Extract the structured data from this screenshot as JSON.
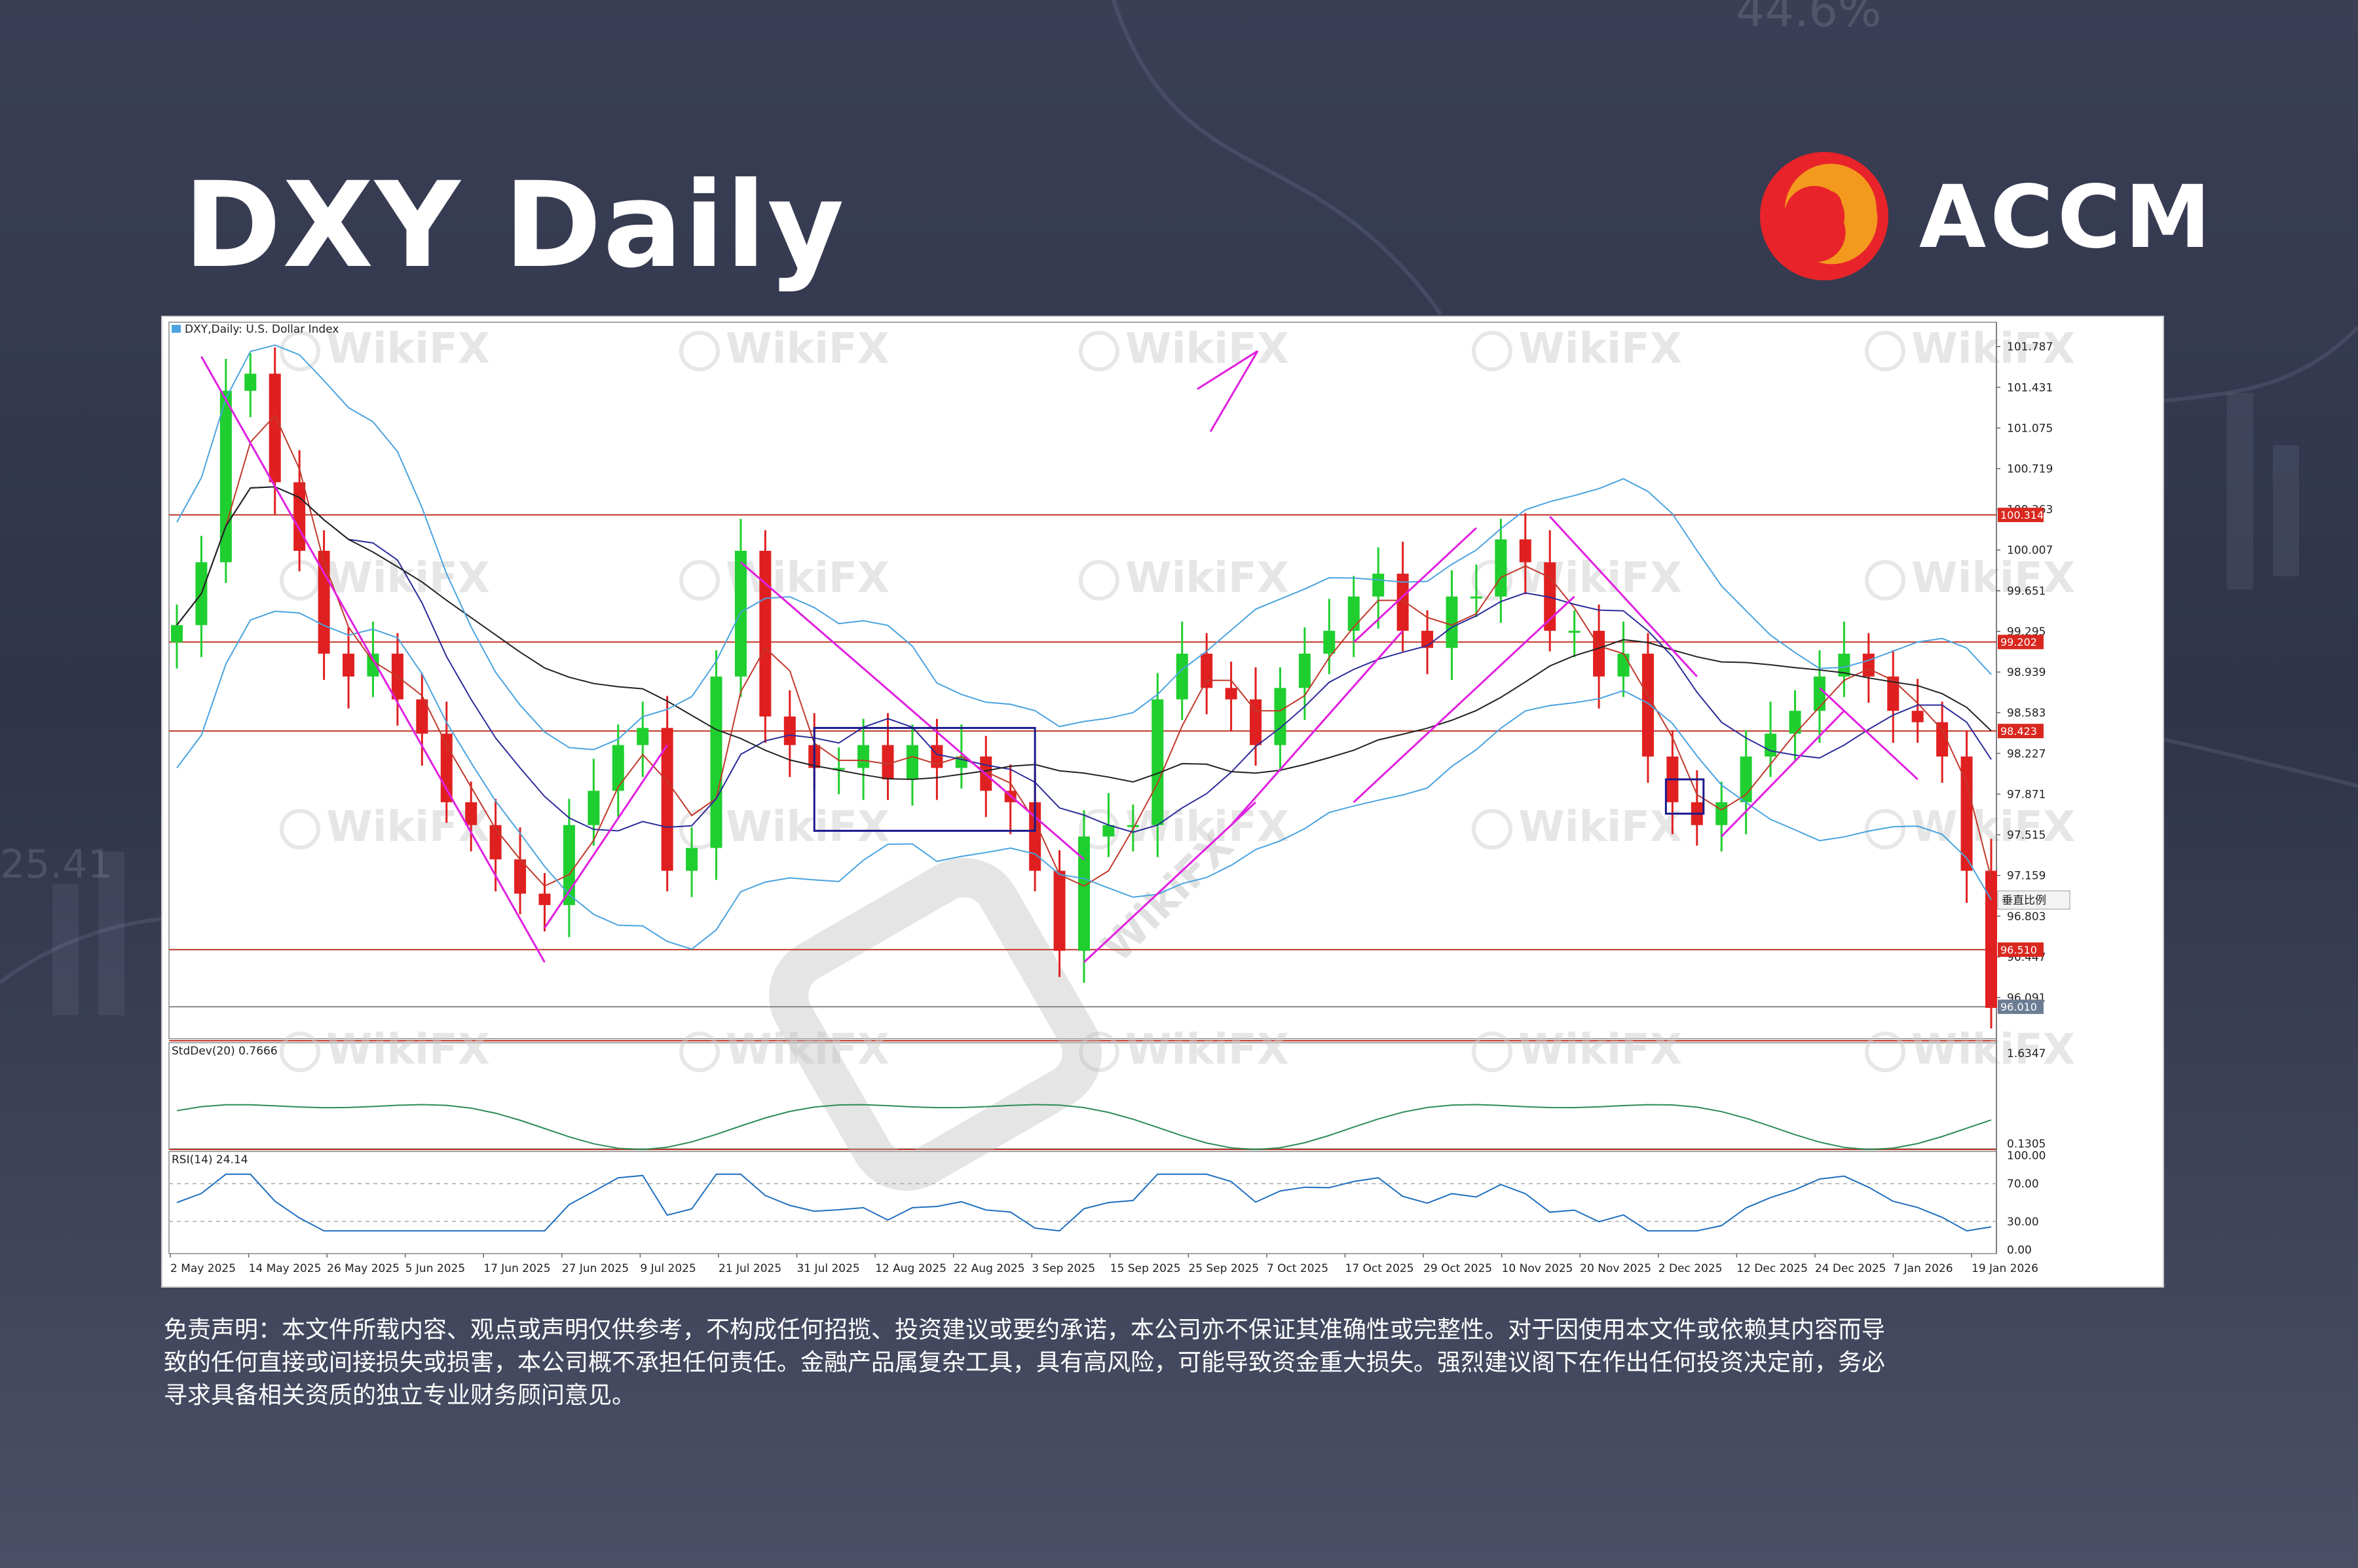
{
  "header": {
    "title": "DXY Daily",
    "brand": "ACCM",
    "brand_color": "#ffffff",
    "logo_colors": [
      "#e8232a",
      "#f39a1e"
    ]
  },
  "watermark": {
    "text": "WikiFX",
    "color": "#cfcfcf"
  },
  "disclaimer": {
    "lines": [
      "免责声明：本文件所载内容、观点或声明仅供参考，不构成任何招揽、投资建议或要约承诺，本公司亦不保证其准确性或完整性。对于因使用本文件或依赖其内容而导",
      "致的任何直接或间接损失或损害，本公司概不承担任何责任。金融产品属复杂工具，具有高风险，可能导致资金重大损失。强烈建议阁下在作出任何投资决定前，务必",
      "寻求具备相关资质的独立专业财务顾问意见。"
    ]
  },
  "chart": {
    "main_label": "DXY,Daily:  U.S. Dollar Index",
    "stddev_label": "StdDev(20) 0.7666",
    "rsi_label": "RSI(14) 24.14",
    "scale_button": "垂直比例",
    "colors": {
      "bull": "#1fcf2f",
      "bear": "#e02020",
      "bollinger": "#4aa3df",
      "sma_short": "#c0392b",
      "sma_mid": "#2b2b9a",
      "sma_long": "#222222",
      "trendline": "#e020e0",
      "horizontal": "#c0392b",
      "box": "#1a1a8c",
      "stddev": "#2e8b57",
      "rsi": "#1f6fbf"
    }
  },
  "chart_data": [
    {
      "type": "candlestick",
      "title": "DXY,Daily:  U.S. Dollar Index",
      "x_ticks": [
        "2 May 2025",
        "14 May 2025",
        "26 May 2025",
        "5 Jun 2025",
        "17 Jun 2025",
        "27 Jun 2025",
        "9 Jul 2025",
        "21 Jul 2025",
        "31 Jul 2025",
        "12 Aug 2025",
        "22 Aug 2025",
        "3 Sep 2025",
        "15 Sep 2025",
        "25 Sep 2025",
        "7 Oct 2025",
        "17 Oct 2025",
        "29 Oct 2025",
        "10 Nov 2025",
        "20 Nov 2025",
        "2 Dec 2025",
        "12 Dec 2025",
        "24 Dec 2025",
        "7 Jan 2026",
        "19 Jan 2026"
      ],
      "y_ticks": [
        "101.787",
        "101.431",
        "101.075",
        "100.719",
        "100.363",
        "100.007",
        "99.651",
        "99.295",
        "98.939",
        "98.583",
        "98.227",
        "97.871",
        "97.515",
        "97.159",
        "96.803",
        "96.447",
        "96.091"
      ],
      "ylim": [
        95.73,
        102.0
      ],
      "price_labels": [
        "100.314",
        "99.202",
        "98.423",
        "96.510",
        "96.010"
      ],
      "horizontal_levels": [
        100.314,
        99.202,
        98.423,
        96.51,
        96.01
      ],
      "close_path": [
        99.35,
        99.9,
        101.4,
        101.55,
        100.6,
        100.0,
        99.1,
        98.9,
        99.1,
        98.7,
        98.4,
        97.8,
        97.6,
        97.3,
        97.0,
        96.9,
        97.6,
        97.9,
        98.3,
        98.45,
        97.2,
        97.4,
        98.9,
        100.0,
        98.55,
        98.3,
        98.1,
        98.1,
        98.3,
        98.0,
        98.3,
        98.1,
        98.2,
        97.9,
        97.8,
        97.2,
        96.5,
        97.5,
        97.6,
        97.6,
        98.7,
        99.1,
        98.8,
        98.7,
        98.3,
        98.8,
        99.1,
        99.3,
        99.6,
        99.8,
        99.3,
        99.15,
        99.6,
        99.6,
        100.1,
        99.9,
        99.3,
        99.3,
        98.9,
        99.1,
        98.2,
        97.8,
        97.6,
        97.8,
        98.2,
        98.4,
        98.6,
        98.9,
        99.1,
        98.9,
        98.6,
        98.5,
        98.2,
        97.2,
        96.0
      ],
      "annotations": [
        "trendlines",
        "rectangles",
        "horizontal support/resistance"
      ]
    },
    {
      "type": "line",
      "title": "StdDev(20) 0.7666",
      "y_ticks": [
        "1.6347",
        "0.1305"
      ],
      "ylim": [
        0.1305,
        1.6347
      ]
    },
    {
      "type": "line",
      "title": "RSI(14) 24.14",
      "y_ticks": [
        "100.00",
        "70.00",
        "30.00",
        "0.00"
      ],
      "ylim": [
        0,
        100
      ],
      "last_value": 24.14
    }
  ]
}
